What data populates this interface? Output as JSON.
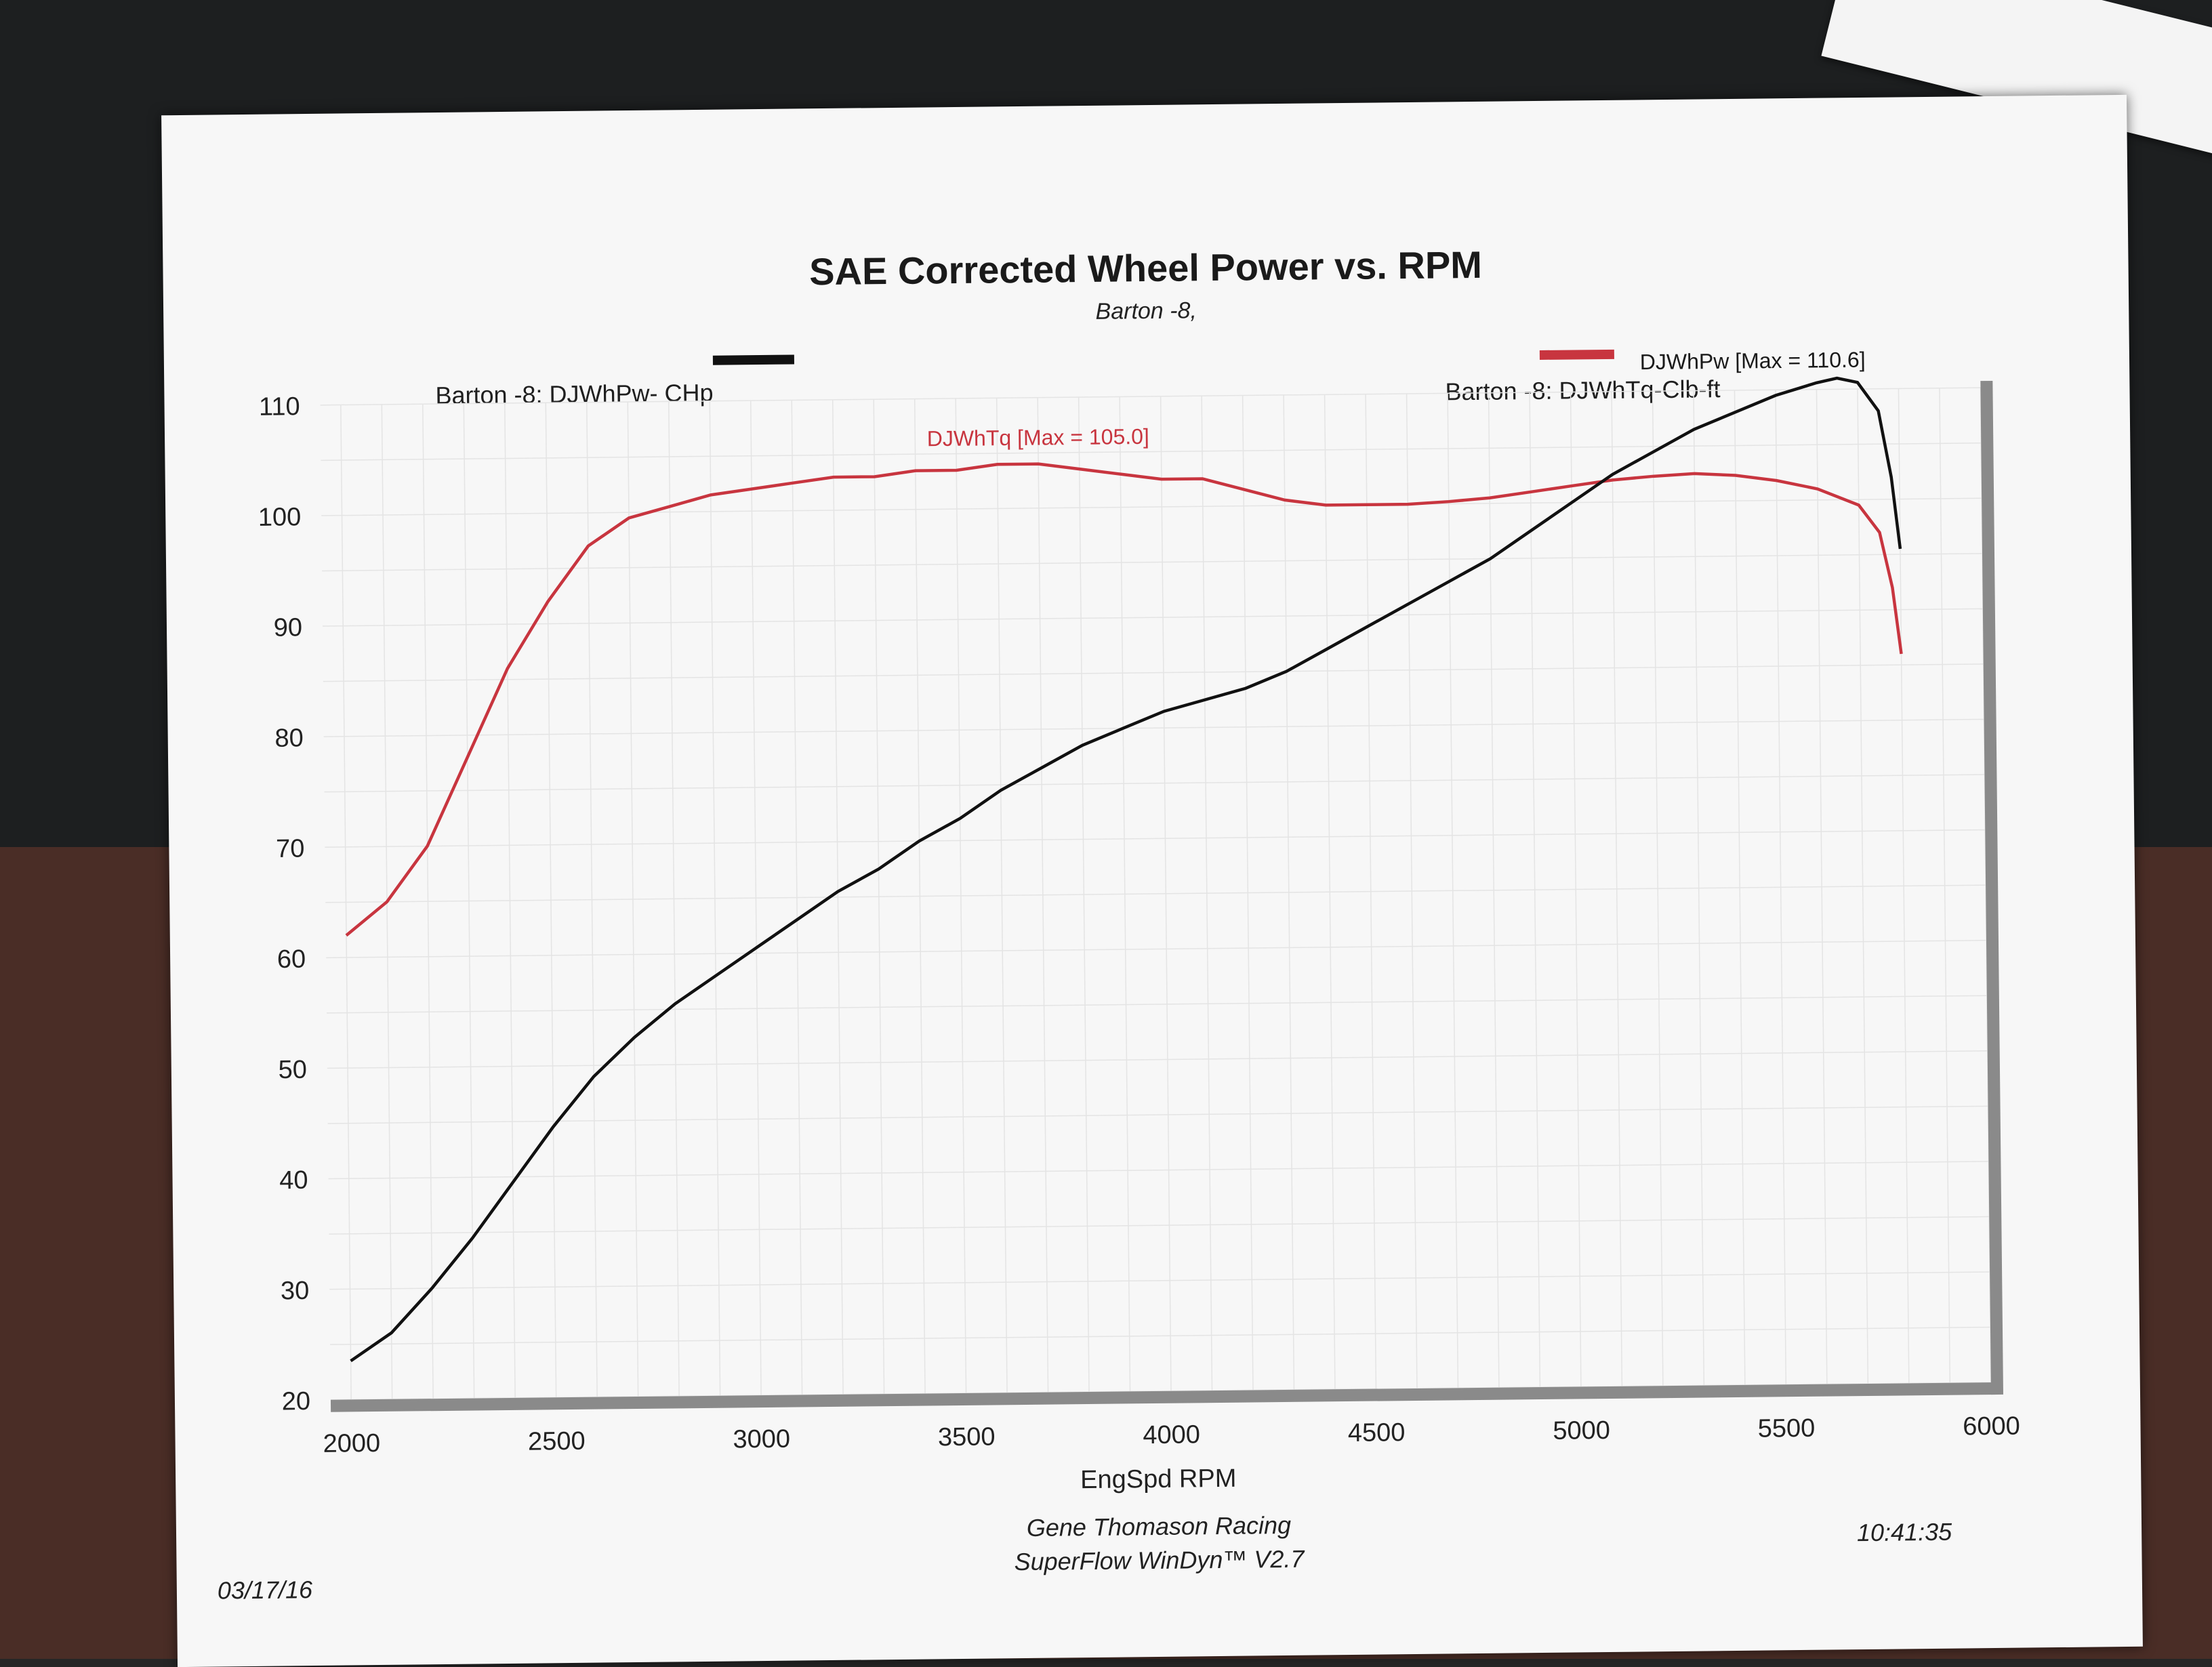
{
  "chart_data": {
    "type": "line",
    "title": "SAE Corrected Wheel Power vs. RPM",
    "subtitle": "Barton -8,",
    "xlabel": "EngSpd  RPM",
    "ylabel": "",
    "xlim": [
      1950,
      6000
    ],
    "ylim": [
      20,
      110
    ],
    "xticks": [
      2000,
      2500,
      3000,
      3500,
      4000,
      4500,
      5000,
      5500,
      6000
    ],
    "yticks": [
      20,
      30,
      40,
      50,
      60,
      70,
      80,
      90,
      100,
      110
    ],
    "grid": true,
    "legend_placement": "top",
    "series": [
      {
        "name": "Barton -8: DJWhPw- CHp",
        "color": "#111111",
        "annotation": "DJWhPw [Max = 110.6]",
        "x": [
          2000,
          2100,
          2200,
          2300,
          2400,
          2500,
          2600,
          2700,
          2800,
          2900,
          3000,
          3100,
          3200,
          3300,
          3400,
          3500,
          3600,
          3700,
          3800,
          3900,
          4000,
          4100,
          4200,
          4300,
          4400,
          4500,
          4600,
          4700,
          4800,
          4900,
          5000,
          5100,
          5200,
          5300,
          5400,
          5500,
          5600,
          5650,
          5700,
          5750,
          5780,
          5800
        ],
        "y": [
          23.5,
          26,
          30,
          34.5,
          39.5,
          44.5,
          49,
          52.5,
          55.5,
          58,
          60.5,
          63,
          65.5,
          67.5,
          70,
          72,
          74.5,
          76.5,
          78.5,
          80,
          81.5,
          82.5,
          83.5,
          85,
          87,
          89,
          91,
          93,
          95,
          97.5,
          100,
          102.5,
          104.5,
          106.5,
          108,
          109.5,
          110.6,
          111,
          110.6,
          108,
          102,
          95.5
        ]
      },
      {
        "name": "Barton -8: DJWhTq-Clb-ft",
        "color": "#c8353f",
        "annotation": "DJWhTq [Max = 105.0]",
        "x": [
          2000,
          2100,
          2200,
          2300,
          2400,
          2500,
          2600,
          2700,
          2800,
          2900,
          3000,
          3100,
          3200,
          3300,
          3400,
          3500,
          3600,
          3700,
          3800,
          3900,
          4000,
          4100,
          4200,
          4300,
          4400,
          4500,
          4600,
          4700,
          4800,
          4900,
          5000,
          5100,
          5200,
          5300,
          5400,
          5500,
          5600,
          5700,
          5750,
          5780,
          5800
        ],
        "y": [
          62,
          65,
          70,
          78,
          86,
          92,
          97,
          99.5,
          100.5,
          101.5,
          102,
          102.5,
          103,
          103,
          103.5,
          103.5,
          104,
          104,
          103.5,
          103,
          102.5,
          102.5,
          101.5,
          100.5,
          100,
          100,
          100,
          100.2,
          100.5,
          101,
          101.5,
          102,
          102.3,
          102.5,
          102.3,
          101.8,
          101,
          99.5,
          97,
          92,
          86
        ]
      }
    ],
    "footer": {
      "date": "03/17/16",
      "time": "10:41:35",
      "line1": "Gene Thomason Racing",
      "line2": "SuperFlow WinDyn™ V2.7"
    }
  }
}
